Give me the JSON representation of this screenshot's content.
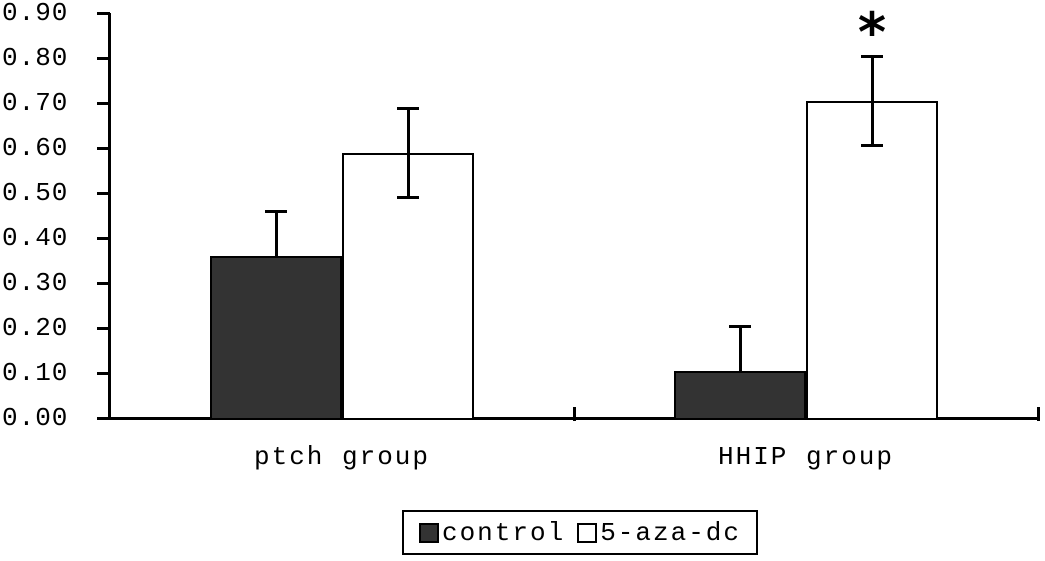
{
  "chart_data": {
    "type": "bar",
    "categories": [
      "ptch group",
      "HHIP group"
    ],
    "series": [
      {
        "name": "control",
        "values": [
          0.36,
          0.105
        ],
        "errors": [
          0.1,
          0.1
        ],
        "fill": "#333333",
        "error_display": "upper"
      },
      {
        "name": "5-aza-dc",
        "values": [
          0.59,
          0.705
        ],
        "errors": [
          0.1,
          0.1
        ],
        "fill": "#ffffff",
        "error_display": "both"
      }
    ],
    "ytick_labels": [
      "0.00",
      "0.10",
      "0.20",
      "0.30",
      "0.40",
      "0.50",
      "0.60",
      "0.70",
      "0.80",
      "0.90"
    ],
    "ylim": [
      0,
      0.9
    ],
    "xlabel": "",
    "ylabel": "",
    "title": "",
    "grid": false,
    "legend_position": "bottom-center",
    "annotations": [
      {
        "text": "*",
        "category_index": 1,
        "series_index": 1
      }
    ]
  },
  "colors": {
    "axis": "#000000",
    "background": "#ffffff",
    "bar_outline": "#000000"
  }
}
